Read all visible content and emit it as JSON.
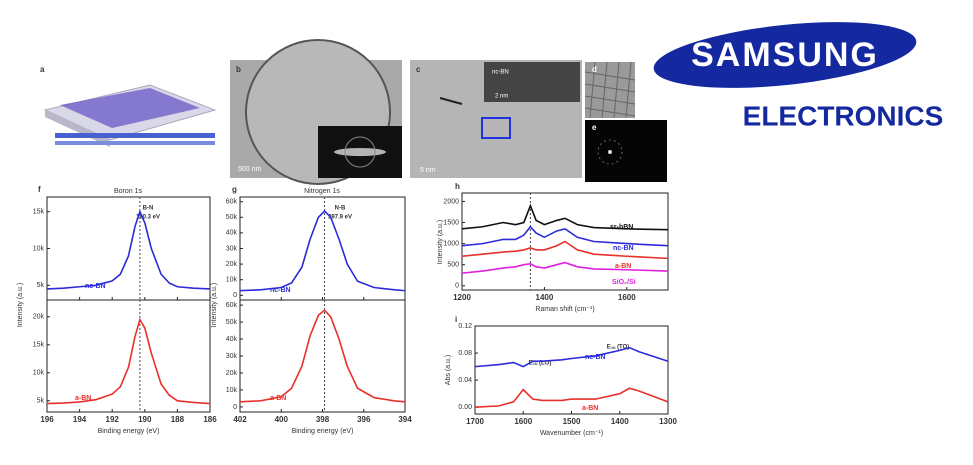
{
  "logo": {
    "brand": "SAMSUNG",
    "division": "ELECTRONICS"
  },
  "images": {
    "a": {
      "label": "a"
    },
    "b": {
      "label": "b",
      "scale": "500 nm"
    },
    "c": {
      "label": "c",
      "scale": "5 nm",
      "inset_label": "nc-BN",
      "inset_scale": "2 nm"
    },
    "d": {
      "label": "d"
    },
    "e": {
      "label": "e"
    }
  },
  "chart_data": [
    {
      "type": "line",
      "panel": "f",
      "title": "Boron 1s",
      "x": [
        196,
        195,
        194,
        193,
        192,
        191.5,
        191,
        190.6,
        190.3,
        190,
        189.6,
        189,
        188.5,
        188,
        187,
        186
      ],
      "xlim": [
        196,
        186
      ],
      "xticks": [
        196,
        194,
        192,
        190,
        188,
        186
      ],
      "ylim": [
        3000,
        17000
      ],
      "yticks": [
        {
          "value": 5000,
          "label": "5k"
        },
        {
          "value": 10000,
          "label": "10k"
        },
        {
          "value": 15000,
          "label": "15k"
        }
      ],
      "ref_line": 190.3,
      "annotations": [
        "B-N",
        "190.3 eV"
      ],
      "series": [
        {
          "name": "nc-BN",
          "color": "#2b2bd9",
          "values": [
            4500,
            4600,
            4800,
            5000,
            5600,
            6500,
            9000,
            13000,
            15000,
            13500,
            10000,
            6500,
            5300,
            4800,
            4600,
            4500
          ]
        }
      ]
    },
    {
      "type": "line",
      "x": [
        196,
        195,
        194,
        193,
        192,
        191.5,
        191,
        190.6,
        190.3,
        190,
        189.6,
        189,
        188.5,
        188,
        187,
        186
      ],
      "xlim": [
        196,
        186
      ],
      "xticks": [
        196,
        194,
        192,
        190,
        188,
        186
      ],
      "ylim": [
        3000,
        23000
      ],
      "yticks": [
        {
          "value": 5000,
          "label": "5k"
        },
        {
          "value": 10000,
          "label": "10k"
        },
        {
          "value": 15000,
          "label": "15k"
        },
        {
          "value": 20000,
          "label": "20k"
        }
      ],
      "xlabel": "Binding energy (eV)",
      "ylabel": "Intensity (a.u.)",
      "ref_line": 190.3,
      "series": [
        {
          "name": "a-BN",
          "color": "#e8302a",
          "values": [
            4500,
            4600,
            4800,
            5200,
            6200,
            7500,
            11000,
            16500,
            19500,
            18000,
            13500,
            8000,
            6000,
            5000,
            4700,
            4500
          ]
        }
      ]
    },
    {
      "type": "line",
      "panel": "g",
      "title": "Nitrogen 1s",
      "x": [
        402,
        401,
        400,
        399.5,
        399,
        398.6,
        398.2,
        397.9,
        397.6,
        397.2,
        396.8,
        396.3,
        395.5,
        394.5,
        394
      ],
      "xlim": [
        402,
        394
      ],
      "xticks": [
        402,
        400,
        398,
        396,
        394
      ],
      "ylim": [
        -3000,
        63000
      ],
      "yticks": [
        0,
        {
          "value": 10000,
          "label": "10k"
        },
        {
          "value": 20000,
          "label": "20k"
        },
        {
          "value": 30000,
          "label": "30k"
        },
        {
          "value": 40000,
          "label": "40k"
        },
        {
          "value": 50000,
          "label": "50k"
        },
        {
          "value": 60000,
          "label": "60k"
        }
      ],
      "ref_line": 397.9,
      "annotations": [
        "N-B",
        "397.9 eV"
      ],
      "series": [
        {
          "name": "nc-BN",
          "color": "#2b2bd9",
          "values": [
            3000,
            3500,
            5000,
            8000,
            18000,
            36000,
            50000,
            54000,
            50000,
            36000,
            20000,
            9000,
            5000,
            3500,
            3000
          ]
        }
      ]
    },
    {
      "type": "line",
      "x": [
        402,
        401,
        400,
        399.5,
        399,
        398.6,
        398.2,
        397.9,
        397.6,
        397.2,
        396.8,
        396.3,
        395.5,
        394.5,
        394
      ],
      "xlim": [
        402,
        394
      ],
      "xticks": [
        402,
        400,
        398,
        396,
        394
      ],
      "ylim": [
        -3000,
        63000
      ],
      "yticks": [
        0,
        {
          "value": 10000,
          "label": "10k"
        },
        {
          "value": 20000,
          "label": "20k"
        },
        {
          "value": 30000,
          "label": "30k"
        },
        {
          "value": 40000,
          "label": "40k"
        },
        {
          "value": 50000,
          "label": "50k"
        },
        {
          "value": 60000,
          "label": "60k"
        }
      ],
      "xlabel": "Binding energy (eV)",
      "ylabel": "Intensity (a.u.)",
      "ref_line": 397.9,
      "series": [
        {
          "name": "a-BN",
          "color": "#e8302a",
          "values": [
            3000,
            3600,
            6000,
            11000,
            24000,
            42000,
            54000,
            57000,
            53000,
            40000,
            24000,
            11000,
            5500,
            3500,
            3000
          ]
        }
      ]
    },
    {
      "type": "line",
      "panel": "h",
      "x": [
        1200,
        1250,
        1300,
        1330,
        1350,
        1366,
        1380,
        1400,
        1430,
        1450,
        1480,
        1520,
        1600,
        1700
      ],
      "xlim": [
        1200,
        1700
      ],
      "xticks": [
        1200,
        1400,
        1600
      ],
      "ylim": [
        -100,
        2200
      ],
      "yticks": [
        0,
        500,
        1000,
        1500,
        2000
      ],
      "xlabel": "Raman shift (cm⁻¹)",
      "ylabel": "Intensity (a.u.)",
      "ref_line": 1366,
      "series": [
        {
          "name": "sr-hBN",
          "color": "#111111",
          "values": [
            1350,
            1400,
            1500,
            1450,
            1500,
            1900,
            1550,
            1450,
            1550,
            1600,
            1450,
            1380,
            1350,
            1330
          ]
        },
        {
          "name": "nc-BN",
          "color": "#2b2bd9",
          "values": [
            950,
            1000,
            1100,
            1100,
            1200,
            1400,
            1250,
            1150,
            1300,
            1350,
            1150,
            1050,
            1000,
            950
          ]
        },
        {
          "name": "a-BN",
          "color": "#e8302a",
          "values": [
            700,
            750,
            800,
            820,
            850,
            900,
            850,
            850,
            950,
            1050,
            850,
            750,
            700,
            650
          ]
        },
        {
          "name": "SiO₂/Si",
          "color": "#e020e0",
          "values": [
            300,
            350,
            420,
            450,
            500,
            520,
            450,
            420,
            500,
            550,
            450,
            400,
            380,
            350
          ]
        }
      ]
    },
    {
      "type": "line",
      "panel": "i",
      "x": [
        1700,
        1650,
        1620,
        1600,
        1580,
        1560,
        1520,
        1500,
        1450,
        1400,
        1380,
        1360,
        1300
      ],
      "xlim": [
        1700,
        1300
      ],
      "xticks": [
        1700,
        1600,
        1500,
        1400,
        1300
      ],
      "ylim": [
        -0.01,
        0.12
      ],
      "yticks": [
        {
          "value": 0,
          "label": "0.00"
        },
        {
          "value": 0.04,
          "label": "0.04"
        },
        {
          "value": 0.08,
          "label": "0.08"
        },
        {
          "value": 0.12,
          "label": "0.12"
        }
      ],
      "xlabel": "Wavenumber (cm⁻¹)",
      "ylabel": "Abs (a.u.)",
      "annotations": [
        "E₁ᵤ (LO)",
        "E₁ᵤ (TO)"
      ],
      "series": [
        {
          "name": "nc-BN",
          "color": "#2b2bd9",
          "values": [
            0.06,
            0.063,
            0.066,
            0.06,
            0.068,
            0.068,
            0.07,
            0.072,
            0.076,
            0.084,
            0.088,
            0.082,
            0.068
          ]
        },
        {
          "name": "a-BN",
          "color": "#e8302a",
          "values": [
            0.0,
            0.002,
            0.008,
            0.026,
            0.012,
            0.01,
            0.01,
            0.012,
            0.012,
            0.02,
            0.028,
            0.024,
            0.008
          ]
        }
      ]
    }
  ]
}
